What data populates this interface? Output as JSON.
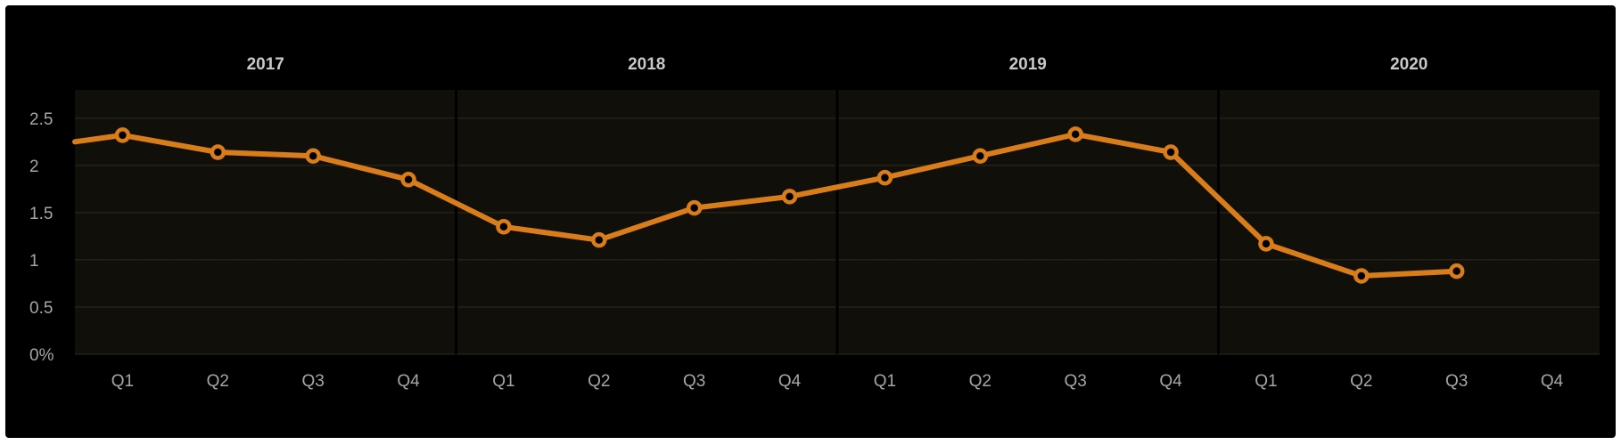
{
  "chart_data": {
    "type": "line",
    "x_groups": [
      "2017",
      "2018",
      "2019",
      "2020"
    ],
    "categories": [
      "Q1",
      "Q2",
      "Q3",
      "Q4"
    ],
    "y_ticks": [
      "0%",
      "0.5",
      "1",
      "1.5",
      "2",
      "2.5"
    ],
    "ylim": [
      0,
      2.8
    ],
    "grid": true,
    "series": [
      {
        "color": "#d97d1a",
        "values": [
          [
            2.32,
            2.14,
            2.1,
            1.85
          ],
          [
            1.35,
            1.21,
            1.55,
            1.67
          ],
          [
            1.87,
            2.1,
            2.33,
            2.14
          ],
          [
            1.17,
            0.83,
            0.88,
            null
          ]
        ]
      }
    ]
  },
  "colors": {
    "background": "#000000",
    "plot_area": "#110f0a",
    "gridline": "#2e2b22",
    "divider": "#000000",
    "line": "#d97d1a",
    "marker_fill": "#000000"
  }
}
